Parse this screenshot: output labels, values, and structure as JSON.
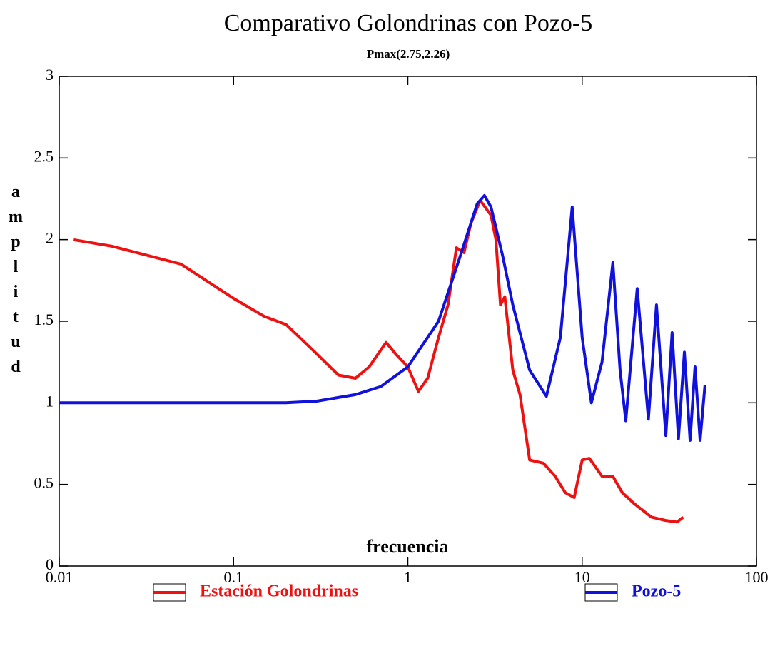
{
  "chart_data": {
    "type": "line",
    "title": "Comparativo Golondrinas con Pozo-5",
    "subtitle": "Pmax(2.75,2.26)",
    "x_label": "frecuencia",
    "y_label": "amplitud",
    "xscale": "log",
    "xlim": [
      0.01,
      100
    ],
    "xticks": [
      0.01,
      0.1,
      1,
      10,
      100
    ],
    "ylim": [
      0,
      3
    ],
    "yticks": [
      0,
      0.5,
      1,
      1.5,
      2,
      2.5,
      3
    ],
    "legend": "bottom",
    "series": [
      {
        "name": "Estación Golondrinas",
        "color": "#ee1111",
        "x": [
          0.012,
          0.02,
          0.05,
          0.1,
          0.15,
          0.2,
          0.3,
          0.4,
          0.5,
          0.6,
          0.75,
          0.85,
          1.0,
          1.15,
          1.3,
          1.5,
          1.7,
          1.9,
          2.1,
          2.3,
          2.6,
          3.0,
          3.2,
          3.4,
          3.6,
          4.0,
          4.4,
          5,
          6,
          7,
          8,
          9,
          10,
          11,
          13,
          15,
          17,
          20,
          25,
          30,
          35,
          38
        ],
        "values": [
          2.0,
          1.96,
          1.85,
          1.64,
          1.53,
          1.48,
          1.3,
          1.17,
          1.15,
          1.22,
          1.37,
          1.3,
          1.22,
          1.07,
          1.15,
          1.4,
          1.6,
          1.95,
          1.92,
          2.1,
          2.24,
          2.15,
          2.0,
          1.6,
          1.65,
          1.2,
          1.05,
          0.65,
          0.63,
          0.55,
          0.45,
          0.42,
          0.65,
          0.66,
          0.55,
          0.55,
          0.45,
          0.38,
          0.3,
          0.28,
          0.27,
          0.3
        ]
      },
      {
        "name": "Pozo-5",
        "color": "#1111dd",
        "x": [
          0.01,
          0.2,
          0.3,
          0.5,
          0.7,
          1.0,
          1.5,
          2,
          2.5,
          2.75,
          3,
          3.5,
          4,
          5,
          6.24,
          7.5,
          8.77,
          10,
          11.3,
          13,
          15.0,
          16.5,
          17.8,
          20.7,
          24,
          26.7,
          30.2,
          32.8,
          35.7,
          38.6,
          41.6,
          44.4,
          47.5,
          50.7
        ],
        "values": [
          1.0,
          1.0,
          1.01,
          1.05,
          1.1,
          1.22,
          1.5,
          1.9,
          2.22,
          2.27,
          2.2,
          1.9,
          1.6,
          1.2,
          1.04,
          1.4,
          2.2,
          1.4,
          1.0,
          1.25,
          1.86,
          1.2,
          0.89,
          1.7,
          0.9,
          1.6,
          0.8,
          1.43,
          0.78,
          1.31,
          0.77,
          1.22,
          0.77,
          1.11
        ]
      }
    ]
  }
}
